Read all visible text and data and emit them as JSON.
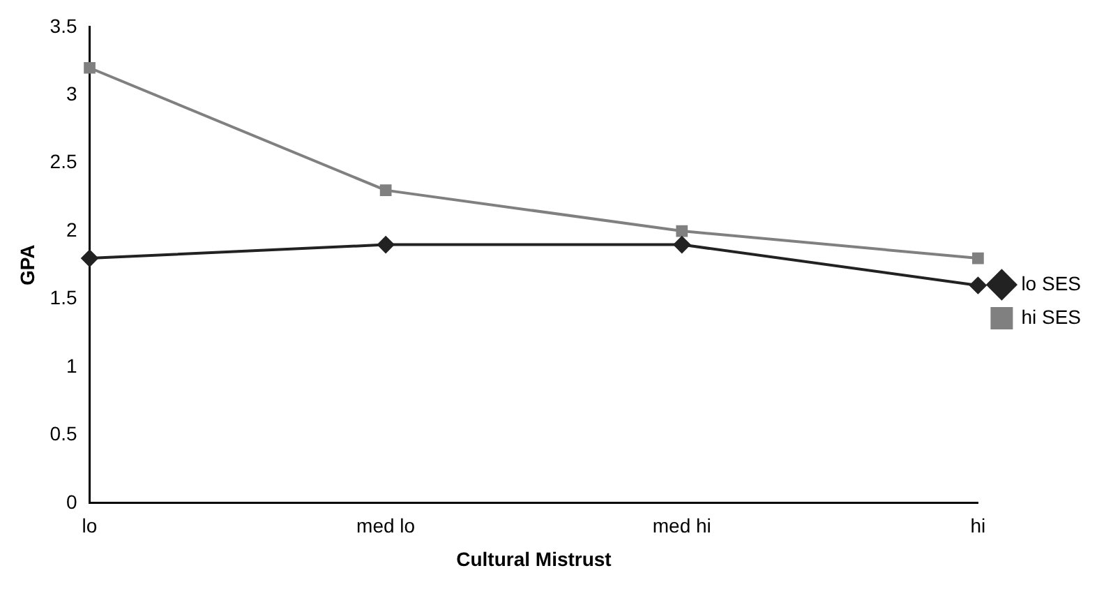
{
  "chart_data": {
    "type": "line",
    "xlabel": "Cultural Mistrust",
    "ylabel": "GPA",
    "categories": [
      "lo",
      "med lo",
      "med hi",
      "hi"
    ],
    "series": [
      {
        "name": "lo SES",
        "color": "#222222",
        "marker": "diamond",
        "values": [
          1.8,
          1.9,
          1.9,
          1.6
        ]
      },
      {
        "name": "hi SES",
        "color": "#808080",
        "marker": "square",
        "values": [
          3.2,
          2.3,
          2.0,
          1.8
        ]
      }
    ],
    "ylim": [
      0,
      3.5
    ],
    "yticks": [
      0,
      0.5,
      1,
      1.5,
      2,
      2.5,
      3,
      3.5
    ],
    "grid": false,
    "legend": "right",
    "line_style": "solid"
  }
}
